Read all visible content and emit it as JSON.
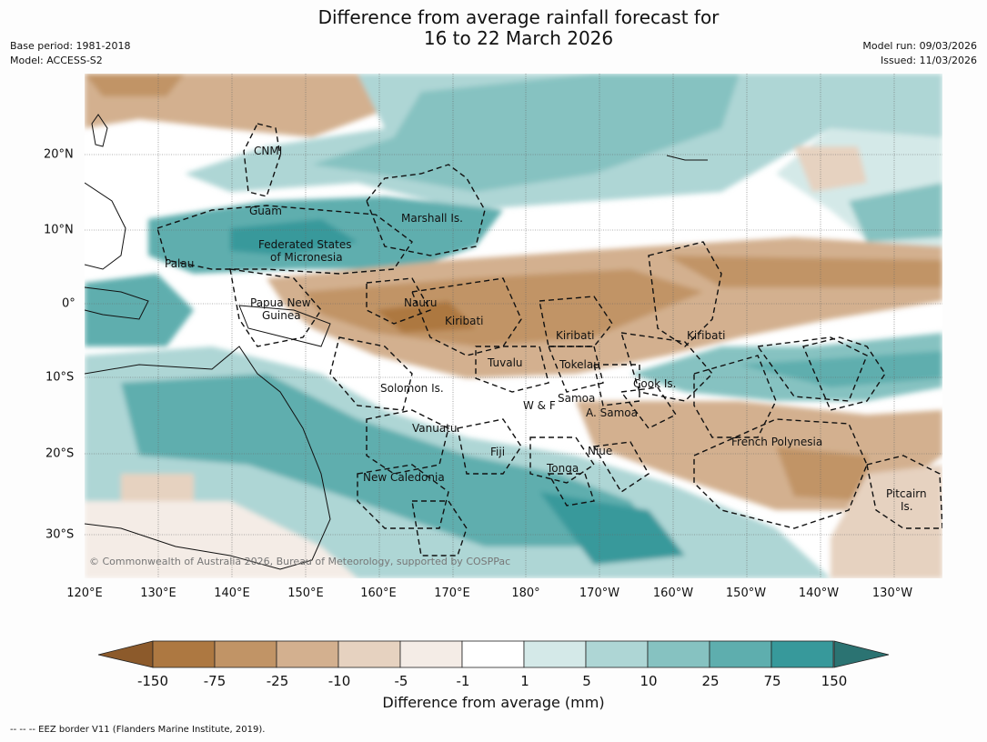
{
  "title": {
    "line1": "Difference from average rainfall forecast for",
    "line2": "16 to 22 March 2026"
  },
  "meta_left": {
    "base_period": "Base period: 1981-2018",
    "model": "Model: ACCESS-S2"
  },
  "meta_right": {
    "model_run": "Model run: 09/03/2026",
    "issued": "Issued: 11/03/2026"
  },
  "axes": {
    "longitudes": [
      "120°E",
      "130°E",
      "140°E",
      "150°E",
      "160°E",
      "170°E",
      "180°",
      "170°W",
      "160°W",
      "150°W",
      "140°W",
      "130°W"
    ],
    "latitudes": [
      "20°N",
      "10°N",
      "0°",
      "10°S",
      "20°S",
      "30°S"
    ]
  },
  "regions": {
    "cnmi": "CNMI",
    "guam": "Guam",
    "marshall": "Marshall Is.",
    "fsm1": "Federated States",
    "fsm2": "of Micronesia",
    "palau": "Palau",
    "png1": "Papua New",
    "png2": "Guinea",
    "nauru": "Nauru",
    "kiribati_w": "Kiribati",
    "kiribati_c": "Kiribati",
    "kiribati_e": "Kiribati",
    "tuvalu": "Tuvalu",
    "tokelau": "Tokelau",
    "cook": "Cook Is.",
    "solomon": "Solomon Is.",
    "samoa": "Samoa",
    "wf": "W & F",
    "asamoa": "A. Samoa",
    "vanuatu": "Vanuatu",
    "fiji": "Fiji",
    "niue": "Niue",
    "tonga": "Tonga",
    "french_polynesia": "French Polynesia",
    "new_caledonia": "New Caledonia",
    "pitcairn1": "Pitcairn",
    "pitcairn2": "Is."
  },
  "copyright": "© Commonwealth of Australia 2026, Bureau of Meteorology, supported by COSPPac",
  "colorbar": {
    "labels": [
      "-150",
      "-75",
      "-25",
      "-10",
      "-5",
      "-1",
      "1",
      "5",
      "10",
      "25",
      "75",
      "150"
    ],
    "colors": {
      "low_extend": "#8c5a2b",
      "bins": [
        "#ad7841",
        "#c19466",
        "#d3b08f",
        "#e6d2c0",
        "#f4ece6",
        "#ffffff",
        "#d4e9e8",
        "#aed6d5",
        "#86c2c1",
        "#5eaeae",
        "#37999b"
      ],
      "high_extend": "#2b7372"
    },
    "title": "Difference from average (mm)"
  },
  "footnote": "--  --  -- EEZ border V11 (Flanders Marine Institute, 2019)."
}
